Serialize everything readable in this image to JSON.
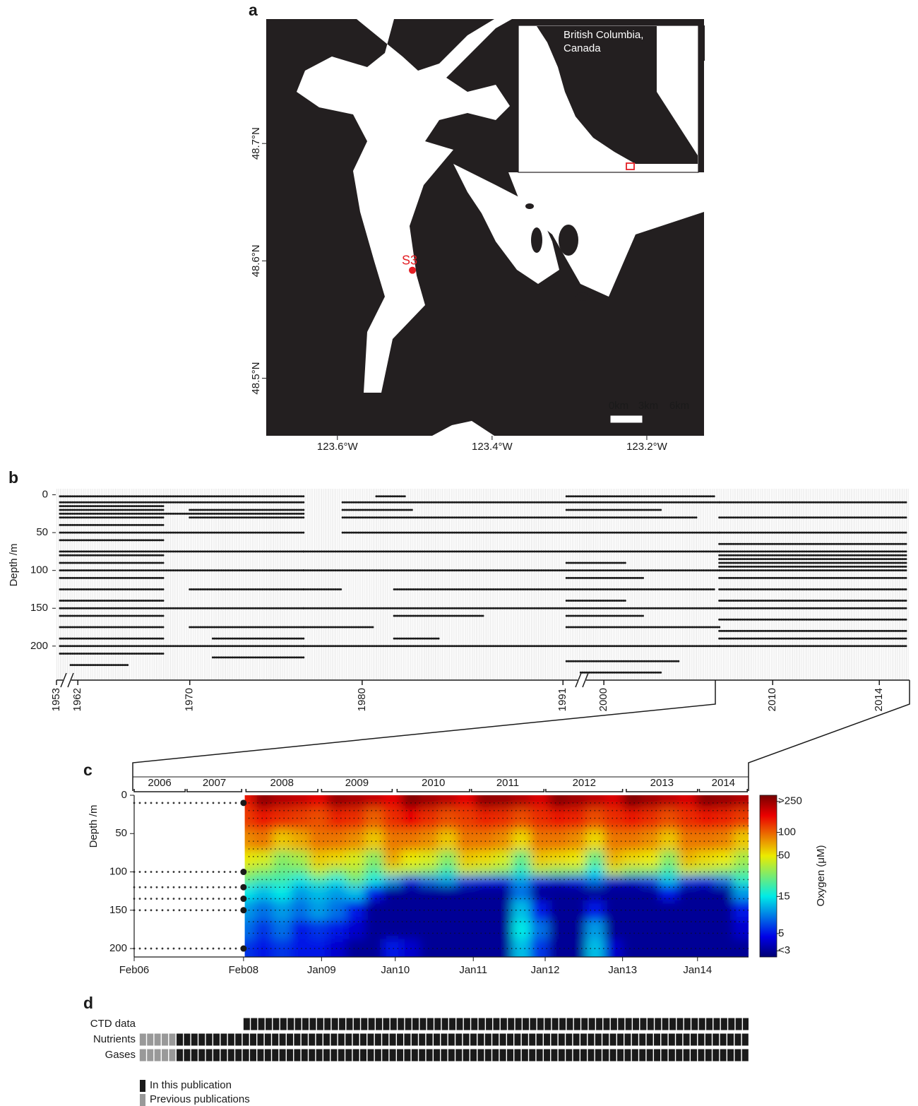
{
  "map": {
    "label": "a",
    "inset_label": "British Columbia, Canada",
    "station": {
      "name": "S3",
      "lon": -123.503,
      "lat": 48.592
    },
    "xlim": [
      -123.692,
      -123.126
    ],
    "ylim": [
      48.451,
      48.806
    ],
    "xticks": [
      {
        "value": -123.6,
        "label": "123.6°W"
      },
      {
        "value": -123.4,
        "label": "123.4°W"
      },
      {
        "value": -123.2,
        "label": "123.2°W"
      }
    ],
    "yticks": [
      {
        "value": 48.5,
        "label": "48.5°N"
      },
      {
        "value": 48.6,
        "label": "48.6°N"
      },
      {
        "value": 48.7,
        "label": "48.7°N"
      }
    ],
    "scale_labels": [
      "0km",
      "3km",
      "6km"
    ]
  },
  "chart_data": [
    {
      "type": "sampling",
      "label": "b",
      "ylabel": "Depth /m",
      "color": "#1a1a1a",
      "xlim": [
        0,
        480
      ],
      "ylim": [
        -8,
        245
      ],
      "xticks": [
        {
          "value": 0,
          "label": "1953"
        },
        {
          "value": 12,
          "label": "1962"
        },
        {
          "value": 75,
          "label": "1970"
        },
        {
          "value": 172,
          "label": "1980"
        },
        {
          "value": 285,
          "label": "1991"
        },
        {
          "value": 308,
          "label": "2000"
        },
        {
          "value": 403,
          "label": "2010"
        },
        {
          "value": 463,
          "label": "2014"
        }
      ],
      "yticks": [
        0,
        50,
        100,
        150,
        200
      ],
      "runs": [
        [
          2,
          2,
          139
        ],
        [
          10,
          2,
          139
        ],
        [
          25,
          2,
          139
        ],
        [
          50,
          2,
          139
        ],
        [
          75,
          2,
          139
        ],
        [
          100,
          2,
          139
        ],
        [
          150,
          2,
          139
        ],
        [
          200,
          2,
          139
        ],
        [
          15,
          2,
          60
        ],
        [
          20,
          2,
          60
        ],
        [
          30,
          2,
          60
        ],
        [
          40,
          2,
          60
        ],
        [
          60,
          2,
          60
        ],
        [
          80,
          2,
          60
        ],
        [
          90,
          2,
          60
        ],
        [
          110,
          2,
          60
        ],
        [
          125,
          2,
          60
        ],
        [
          140,
          2,
          60
        ],
        [
          160,
          2,
          60
        ],
        [
          175,
          2,
          60
        ],
        [
          190,
          2,
          60
        ],
        [
          210,
          2,
          60
        ],
        [
          225,
          8,
          40
        ],
        [
          20,
          75,
          139
        ],
        [
          30,
          75,
          139
        ],
        [
          125,
          75,
          139
        ],
        [
          175,
          75,
          139
        ],
        [
          190,
          88,
          139
        ],
        [
          215,
          88,
          139
        ],
        [
          75,
          139,
          286
        ],
        [
          100,
          139,
          286
        ],
        [
          150,
          139,
          286
        ],
        [
          200,
          139,
          286
        ],
        [
          175,
          139,
          178
        ],
        [
          125,
          139,
          160
        ],
        [
          10,
          161,
          286
        ],
        [
          30,
          161,
          286
        ],
        [
          20,
          161,
          200
        ],
        [
          50,
          161,
          286
        ],
        [
          125,
          190,
          286
        ],
        [
          160,
          190,
          240
        ],
        [
          190,
          190,
          215
        ],
        [
          2,
          180,
          196
        ],
        [
          2,
          287,
          370
        ],
        [
          10,
          287,
          373
        ],
        [
          20,
          287,
          340
        ],
        [
          30,
          287,
          360
        ],
        [
          50,
          287,
          373
        ],
        [
          75,
          287,
          373
        ],
        [
          90,
          287,
          320
        ],
        [
          100,
          287,
          373
        ],
        [
          110,
          287,
          330
        ],
        [
          125,
          287,
          370
        ],
        [
          140,
          287,
          320
        ],
        [
          150,
          287,
          373
        ],
        [
          160,
          287,
          330
        ],
        [
          175,
          287,
          373
        ],
        [
          200,
          287,
          373
        ],
        [
          220,
          287,
          350
        ],
        [
          235,
          295,
          340
        ],
        [
          10,
          373,
          478
        ],
        [
          30,
          373,
          478
        ],
        [
          50,
          373,
          478
        ],
        [
          65,
          373,
          478
        ],
        [
          75,
          373,
          478
        ],
        [
          80,
          373,
          478
        ],
        [
          85,
          373,
          478
        ],
        [
          90,
          373,
          478
        ],
        [
          95,
          373,
          478
        ],
        [
          100,
          373,
          478
        ],
        [
          110,
          373,
          478
        ],
        [
          125,
          373,
          478
        ],
        [
          140,
          373,
          478
        ],
        [
          150,
          373,
          478
        ],
        [
          165,
          373,
          478
        ],
        [
          180,
          373,
          478
        ],
        [
          190,
          373,
          478
        ],
        [
          200,
          373,
          478
        ]
      ]
    },
    {
      "type": "heatmap",
      "label": "c",
      "ylabel": "Depth /m",
      "colorbar_label": "Oxygen (μM)",
      "xlim": [
        0,
        100
      ],
      "ylim": [
        0,
        211
      ],
      "xticks": [
        {
          "value": 0,
          "label": "Feb06"
        },
        {
          "value": 17.8,
          "label": "Feb08"
        },
        {
          "value": 30.5,
          "label": "Jan09"
        },
        {
          "value": 42.5,
          "label": "Jan10"
        },
        {
          "value": 55.2,
          "label": "Jan11"
        },
        {
          "value": 66.9,
          "label": "Jan12"
        },
        {
          "value": 79.5,
          "label": "Jan13"
        },
        {
          "value": 91.7,
          "label": "Jan14"
        }
      ],
      "yticks": [
        0,
        50,
        100,
        150,
        200
      ],
      "zlim": [
        2.5,
        300
      ],
      "zticks": [
        {
          "value": 3,
          "label": "<3"
        },
        5,
        15,
        50,
        100,
        {
          "value": 250,
          "label": ">250"
        }
      ],
      "years": {
        "labels": [
          "2006",
          "2007",
          "2008",
          "2009",
          "2010",
          "2011",
          "2012",
          "2013",
          "2014"
        ],
        "from": [
          0,
          8.6,
          18.2,
          30.5,
          42.8,
          54.9,
          67,
          80.1,
          92
        ],
        "to": [
          8.3,
          17.5,
          29.9,
          42,
          54.6,
          66.7,
          79.5,
          91.7,
          99.8
        ]
      },
      "sampling_depths": [
        10,
        100,
        120,
        135,
        150,
        200
      ],
      "sampling_start": 0,
      "sampling_end": 17.8,
      "ctd_depths": [
        10,
        20,
        30,
        40,
        50,
        60,
        70,
        80,
        90,
        100,
        110,
        120,
        135,
        150,
        165,
        180,
        200
      ],
      "x": [
        18,
        21,
        24,
        27,
        30,
        33,
        36,
        39,
        42,
        45,
        48,
        51,
        54,
        57,
        60,
        63,
        66,
        69,
        72,
        75,
        78,
        81,
        84,
        87,
        90,
        93,
        96,
        99
      ],
      "depths": [
        5,
        30,
        60,
        85,
        100,
        110,
        125,
        150,
        175,
        200
      ],
      "z": [
        [
          150,
          120,
          80,
          50,
          35,
          25,
          15,
          10,
          8,
          6
        ],
        [
          260,
          150,
          90,
          45,
          30,
          20,
          12,
          8,
          6,
          5
        ],
        [
          220,
          130,
          60,
          30,
          25,
          20,
          15,
          10,
          8,
          6
        ],
        [
          200,
          120,
          70,
          35,
          25,
          15,
          10,
          8,
          5,
          5
        ],
        [
          170,
          110,
          90,
          60,
          40,
          20,
          12,
          10,
          6,
          5
        ],
        [
          250,
          140,
          90,
          55,
          30,
          15,
          10,
          8,
          5,
          4
        ],
        [
          230,
          130,
          80,
          45,
          35,
          25,
          12,
          5,
          4,
          3
        ],
        [
          200,
          100,
          60,
          30,
          22,
          15,
          5,
          3,
          3,
          3
        ],
        [
          170,
          130,
          90,
          70,
          40,
          10,
          3,
          3,
          3,
          5
        ],
        [
          280,
          160,
          90,
          50,
          35,
          5,
          3,
          3,
          3,
          4
        ],
        [
          240,
          130,
          80,
          45,
          30,
          8,
          3,
          3,
          3,
          3
        ],
        [
          210,
          110,
          60,
          30,
          20,
          10,
          3,
          3,
          3,
          3
        ],
        [
          170,
          120,
          90,
          60,
          40,
          6,
          3,
          3,
          3,
          3
        ],
        [
          260,
          140,
          90,
          55,
          35,
          5,
          3,
          3,
          3,
          3
        ],
        [
          250,
          130,
          80,
          45,
          30,
          5,
          3,
          3,
          3,
          3
        ],
        [
          220,
          110,
          55,
          25,
          18,
          10,
          8,
          12,
          15,
          12
        ],
        [
          180,
          130,
          90,
          60,
          35,
          5,
          3,
          5,
          8,
          6
        ],
        [
          270,
          150,
          90,
          55,
          30,
          4,
          3,
          3,
          3,
          3
        ],
        [
          240,
          140,
          80,
          50,
          30,
          5,
          3,
          3,
          3,
          3
        ],
        [
          210,
          110,
          55,
          25,
          15,
          8,
          3,
          5,
          10,
          12
        ],
        [
          180,
          130,
          90,
          65,
          40,
          4,
          3,
          3,
          3,
          4
        ],
        [
          280,
          150,
          90,
          55,
          30,
          4,
          3,
          3,
          3,
          3
        ],
        [
          240,
          130,
          80,
          50,
          30,
          6,
          3,
          3,
          3,
          3
        ],
        [
          210,
          110,
          60,
          30,
          20,
          12,
          5,
          3,
          3,
          3
        ],
        [
          180,
          130,
          90,
          65,
          40,
          6,
          3,
          3,
          3,
          3
        ],
        [
          270,
          150,
          90,
          55,
          35,
          5,
          3,
          3,
          3,
          3
        ],
        [
          250,
          140,
          85,
          50,
          30,
          8,
          3,
          3,
          3,
          3
        ],
        [
          220,
          120,
          60,
          35,
          25,
          18,
          10,
          5,
          4,
          3
        ]
      ]
    },
    {
      "type": "coverage",
      "label": "d",
      "xlim": [
        0,
        100
      ],
      "rows": [
        "CTD data",
        "Nutrients",
        "Gases"
      ],
      "series": [
        {
          "name": "In this publication",
          "color": "#1a1a1a",
          "segments": [
            [
              17.8,
              100
            ],
            [
              6.9,
              100
            ],
            [
              6.9,
              100
            ]
          ]
        },
        {
          "name": "Previous publications",
          "color": "#999999",
          "segments": [
            null,
            [
              0.9,
              6.9
            ],
            [
              0.9,
              6.9
            ]
          ]
        }
      ]
    }
  ]
}
